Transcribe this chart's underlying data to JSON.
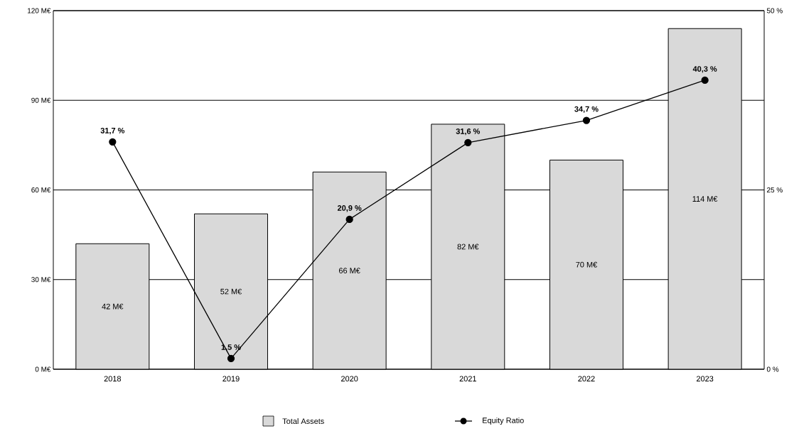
{
  "chart_data": {
    "type": "bar",
    "categories": [
      "2018",
      "2019",
      "2020",
      "2021",
      "2022",
      "2023"
    ],
    "series": [
      {
        "name": "Total Assets",
        "color": "#d9d9d9",
        "values": [
          42,
          52,
          66,
          82,
          70,
          114
        ],
        "value_labels": [
          "42 M€",
          "52 M€",
          "66 M€",
          "82 M€",
          "70 M€",
          "114 M€"
        ]
      },
      {
        "name": "Equity Ratio",
        "type": "line",
        "axis": "y2",
        "marker": "circle",
        "color": "#000000",
        "values": [
          31.7,
          1.5,
          20.9,
          31.6,
          34.7,
          40.3
        ],
        "value_labels": [
          "31,7 %",
          "1,5 %",
          "20,9 %",
          "31,6 %",
          "34,7 %",
          "40,3 %"
        ]
      }
    ],
    "ylim": [
      0,
      120
    ],
    "yticks": [
      {
        "value": 0,
        "label": "0 M€"
      },
      {
        "value": 30,
        "label": "30 M€"
      },
      {
        "value": 60,
        "label": "60 M€"
      },
      {
        "value": 90,
        "label": "90 M€"
      },
      {
        "value": 120,
        "label": "120 M€"
      }
    ],
    "y2lim": [
      0,
      50
    ],
    "y2ticks": [
      {
        "value": 0,
        "label": "0 %"
      },
      {
        "value": 25,
        "label": "25 %"
      },
      {
        "value": 50,
        "label": "50 %"
      }
    ],
    "grid": "y",
    "legend": "bottom"
  }
}
